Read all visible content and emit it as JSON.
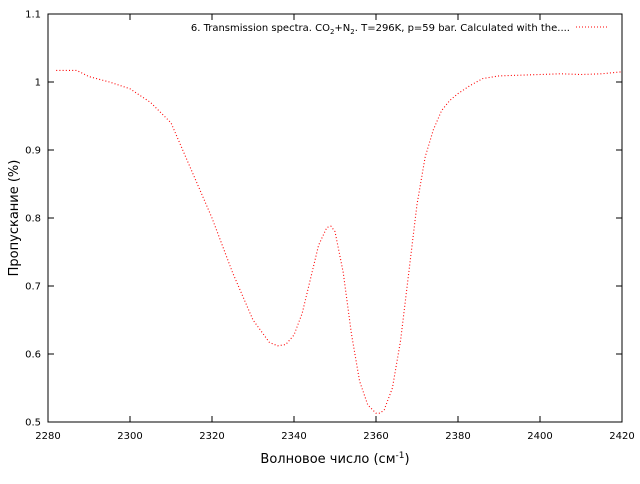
{
  "chart_data": {
    "type": "line",
    "title": "",
    "xlabel": "Волновое число (см",
    "xlabel_sup": "-1",
    "xlabel_suffix": ")",
    "ylabel": "Пропускание (%)",
    "xlim": [
      2280,
      2420
    ],
    "ylim": [
      0.5,
      1.1
    ],
    "x_ticks": [
      2280,
      2300,
      2320,
      2340,
      2360,
      2380,
      2400,
      2420
    ],
    "y_ticks": [
      0.5,
      0.6,
      0.7,
      0.8,
      0.9,
      1,
      1.1
    ],
    "grid": false,
    "legend_position": "top-right",
    "series": [
      {
        "name": "6. Transmission spectra. CO2+N2. T=296K, p=59 bar. Calculated with the....",
        "legend_parts": {
          "p1": "6. Transmission spectra. CO",
          "s1": "2",
          "p2": "+N",
          "s2": "2",
          "p3": ". T=296K, p=59 bar. Calculated with the...."
        },
        "color": "#ff0000",
        "line_style": "dotted",
        "x": [
          2282,
          2287,
          2290,
          2295,
          2300,
          2305,
          2310,
          2315,
          2320,
          2325,
          2330,
          2334,
          2336,
          2338,
          2340,
          2342,
          2344,
          2346,
          2348,
          2349,
          2350,
          2352,
          2354,
          2356,
          2358,
          2360,
          2361,
          2362,
          2364,
          2366,
          2368,
          2370,
          2372,
          2374,
          2376,
          2378,
          2380,
          2383,
          2386,
          2390,
          2395,
          2400,
          2405,
          2410,
          2415,
          2420
        ],
        "y": [
          1.017,
          1.017,
          1.008,
          1.0,
          0.99,
          0.97,
          0.94,
          0.87,
          0.8,
          0.72,
          0.65,
          0.617,
          0.612,
          0.614,
          0.628,
          0.66,
          0.71,
          0.76,
          0.786,
          0.788,
          0.78,
          0.72,
          0.63,
          0.56,
          0.525,
          0.513,
          0.513,
          0.518,
          0.55,
          0.62,
          0.72,
          0.82,
          0.89,
          0.93,
          0.958,
          0.973,
          0.983,
          0.995,
          1.005,
          1.009,
          1.01,
          1.011,
          1.012,
          1.011,
          1.012,
          1.015
        ]
      }
    ]
  }
}
